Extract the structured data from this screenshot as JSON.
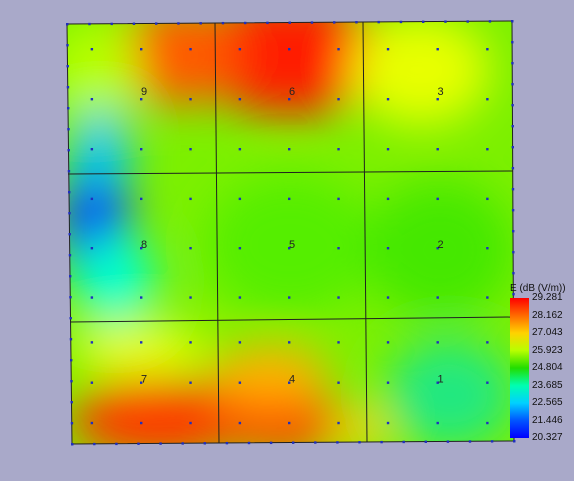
{
  "viewer": {
    "background_color": "#a9a9c9",
    "grid_line_color": "#202020",
    "point_color": "#1f2fbf"
  },
  "field_map": {
    "cells": [
      {
        "label": "9",
        "row": 0,
        "col": 0
      },
      {
        "label": "6",
        "row": 0,
        "col": 1
      },
      {
        "label": "3",
        "row": 0,
        "col": 2
      },
      {
        "label": "8",
        "row": 1,
        "col": 0
      },
      {
        "label": "5",
        "row": 1,
        "col": 1
      },
      {
        "label": "2",
        "row": 1,
        "col": 2
      },
      {
        "label": "7",
        "row": 2,
        "col": 0
      },
      {
        "label": "4",
        "row": 2,
        "col": 1
      },
      {
        "label": "1",
        "row": 2,
        "col": 2
      }
    ],
    "points_per_cell_side": 3
  },
  "legend": {
    "title": "E (dB (V/m))",
    "ticks": [
      "29.281",
      "28.162",
      "27.043",
      "25.923",
      "24.804",
      "23.685",
      "22.565",
      "21.446",
      "20.327"
    ],
    "colors": [
      "#ff0000",
      "#ff6a00",
      "#ffd200",
      "#b8ff00",
      "#22dd00",
      "#00ffb0",
      "#00d0ff",
      "#0055ff",
      "#0000ff"
    ]
  }
}
